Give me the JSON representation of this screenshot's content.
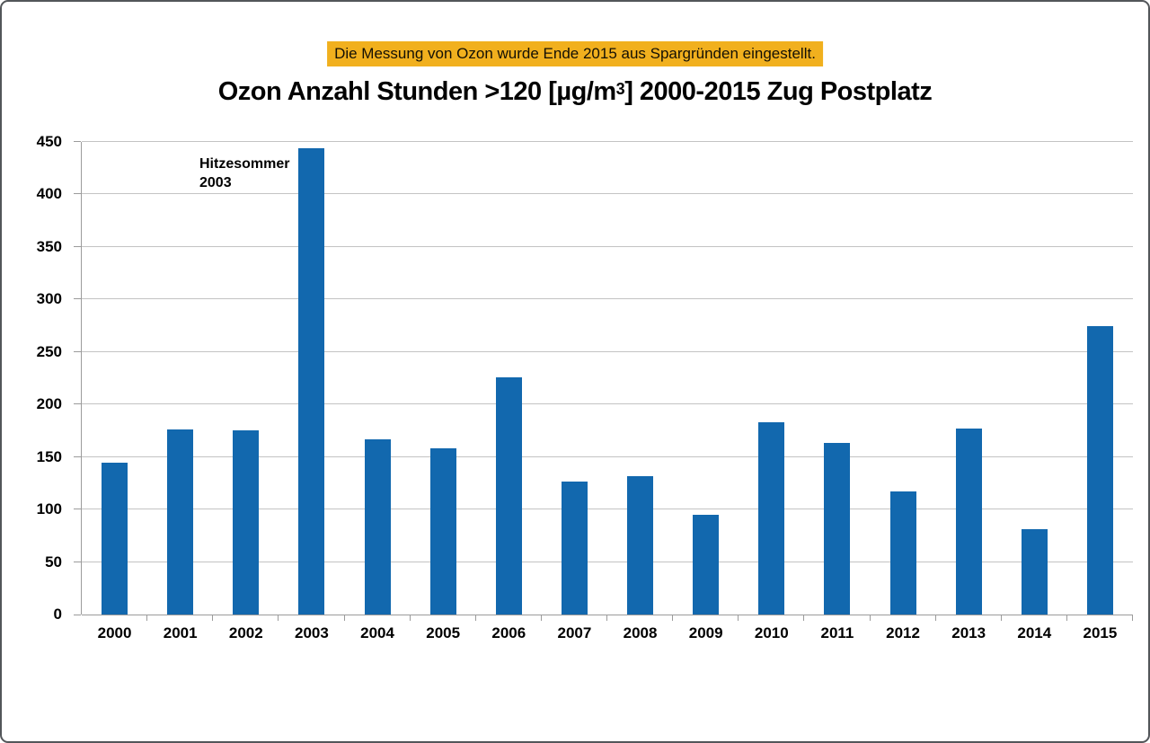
{
  "banner": {
    "text": "Die Messung von Ozon wurde Ende 2015 aus Spargründen eingestellt.",
    "bg_color": "#F1B01E"
  },
  "title": {
    "part1": "Ozon Anzahl Stunden >120 [µg/m",
    "superscript": "3",
    "part2": "] 2000-2015 Zug Postplatz"
  },
  "annotation": {
    "line1": "Hitzesommer",
    "line2": "2003"
  },
  "chart_data": {
    "type": "bar",
    "title": "Ozon Anzahl Stunden >120 [µg/m³] 2000-2015 Zug Postplatz",
    "categories": [
      "2000",
      "2001",
      "2002",
      "2003",
      "2004",
      "2005",
      "2006",
      "2007",
      "2008",
      "2009",
      "2010",
      "2011",
      "2012",
      "2013",
      "2014",
      "2015"
    ],
    "values": [
      145,
      176,
      175,
      444,
      167,
      158,
      226,
      127,
      132,
      95,
      183,
      163,
      117,
      177,
      81,
      275
    ],
    "xlabel": "",
    "ylabel": "Anzahl Stunden",
    "ylim": [
      0,
      450
    ],
    "yticks": [
      0,
      50,
      100,
      150,
      200,
      250,
      300,
      350,
      400,
      450
    ],
    "grid": true,
    "legend": "none",
    "bar_color": "#1268AE",
    "annotation_text": "Hitzesommer 2003",
    "annotation_target_category": "2003"
  }
}
